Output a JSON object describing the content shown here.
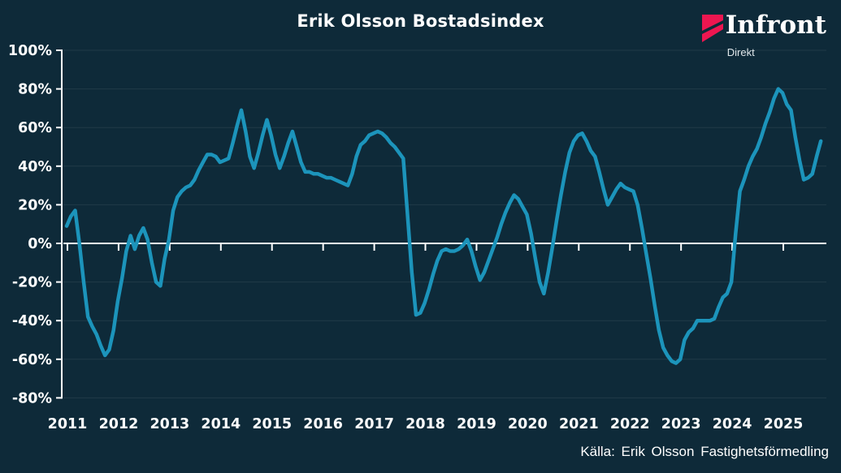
{
  "title": "Erik Olsson Bostadsindex",
  "logo": {
    "brand": "Infront",
    "sub": "Direkt",
    "mark_color": "#ed1650"
  },
  "source_label": "Källa: Erik Olsson Fastighetsförmedling",
  "colors": {
    "background": "#0e2a39",
    "line": "#1c94bb",
    "axis": "#ffffff",
    "grid": "rgba(255,255,255,0.08)",
    "logo_red": "#ed1650"
  },
  "chart_data": {
    "type": "line",
    "title": "Erik Olsson Bostadsindex",
    "frequency": "monthly",
    "start": "2011-01",
    "end": "2025-10",
    "xlabel": "",
    "ylabel": "",
    "ylim": [
      -80,
      100
    ],
    "y_step": 20,
    "grid": true,
    "legend": "none",
    "line_color": "#1c94bb",
    "y_tick_values": [
      100,
      80,
      60,
      40,
      20,
      0,
      -20,
      -40,
      -60,
      -80
    ],
    "y_tick_labels": [
      "100%",
      "80%",
      "60%",
      "40%",
      "20%",
      "0%",
      "-20%",
      "-40%",
      "-60%",
      "-80%"
    ],
    "x_tick_labels": [
      "2011",
      "2012",
      "2013",
      "2014",
      "2015",
      "2016",
      "2017",
      "2018",
      "2019",
      "2020",
      "2021",
      "2022",
      "2023",
      "2024",
      "2025"
    ],
    "values": [
      9,
      14,
      17,
      0,
      -20,
      -38,
      -43,
      -47,
      -53,
      -58,
      -55,
      -45,
      -30,
      -18,
      -4,
      4,
      -3,
      4,
      8,
      2,
      -10,
      -20,
      -22,
      -8,
      2,
      17,
      24,
      27,
      29,
      30,
      33,
      38,
      42,
      46,
      46,
      45,
      42,
      43,
      44,
      52,
      61,
      69,
      58,
      45,
      39,
      47,
      56,
      64,
      56,
      46,
      39,
      45,
      52,
      58,
      50,
      42,
      37,
      37,
      36,
      36,
      35,
      34,
      34,
      33,
      32,
      31,
      30,
      36,
      45,
      51,
      53,
      56,
      57,
      58,
      57,
      55,
      52,
      50,
      47,
      44,
      15,
      -15,
      -37,
      -36,
      -31,
      -24,
      -16,
      -9,
      -4,
      -3,
      -4,
      -4,
      -3,
      -1,
      2,
      -4,
      -12,
      -19,
      -15,
      -9,
      -3,
      3,
      10,
      16,
      21,
      25,
      23,
      19,
      15,
      5,
      -8,
      -20,
      -26,
      -15,
      -2,
      12,
      25,
      37,
      47,
      53,
      56,
      57,
      53,
      48,
      45,
      37,
      28,
      20,
      24,
      28,
      31,
      29,
      28,
      27,
      20,
      8,
      -5,
      -18,
      -32,
      -45,
      -54,
      -58,
      -61,
      -62,
      -60,
      -50,
      -46,
      -44,
      -40,
      -40,
      -40,
      -40,
      -39,
      -33,
      -28,
      -26,
      -20,
      5,
      27,
      33,
      40,
      45,
      49,
      55,
      62,
      68,
      75,
      80,
      78,
      72,
      69,
      55,
      43,
      33,
      34,
      36,
      45,
      53
    ]
  }
}
